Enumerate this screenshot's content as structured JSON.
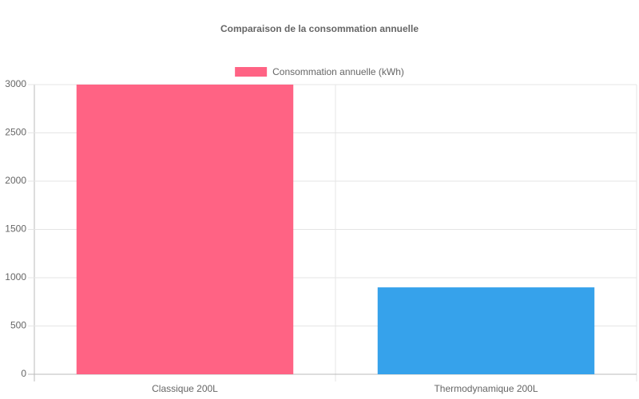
{
  "chart_data": {
    "type": "bar",
    "title": "Comparaison de la consommation annuelle",
    "categories": [
      "Classique 200L",
      "Thermodynamique 200L"
    ],
    "series": [
      {
        "name": "Consommation annuelle (kWh)",
        "colors": [
          "#ff6384",
          "#36a2eb"
        ],
        "values": [
          3000,
          900
        ]
      }
    ],
    "ylim": [
      0,
      3000
    ],
    "yticks": [
      0,
      500,
      1000,
      1500,
      2000,
      2500,
      3000
    ],
    "grid": true,
    "legend": "top"
  }
}
